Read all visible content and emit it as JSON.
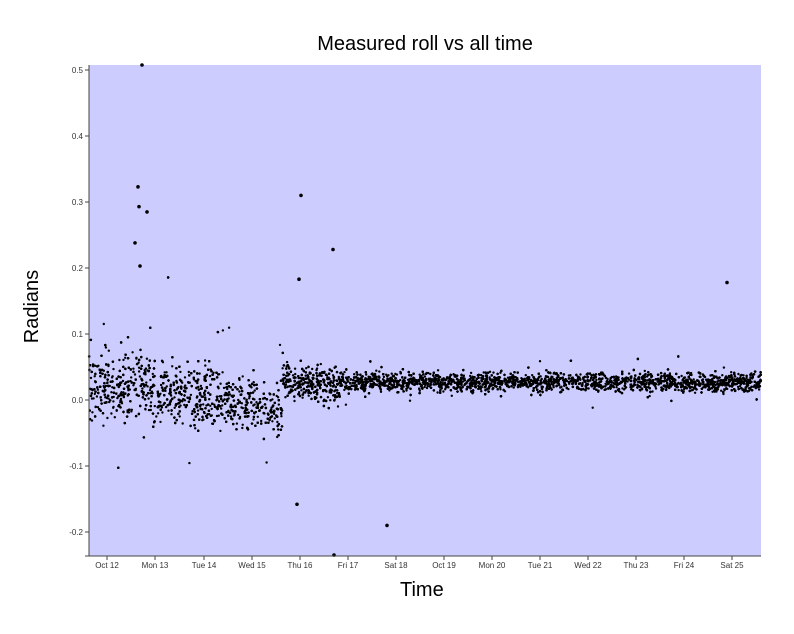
{
  "chart_data": {
    "type": "scatter",
    "title": "Measured roll vs all time",
    "xlabel": "Time",
    "ylabel": "Radians",
    "ylim": [
      -0.235,
      0.51
    ],
    "yticks": [
      -0.2,
      -0.1,
      0.0,
      0.1,
      0.2,
      0.3,
      0.4,
      0.5
    ],
    "ytick_labels": [
      "-0.2",
      "-0.1",
      "0.0",
      "0.1",
      "0.2",
      "0.3",
      "0.4",
      "0.5"
    ],
    "xtick_labels": [
      "Oct 12",
      "Mon 13",
      "Tue 14",
      "Wed 15",
      "Thu 16",
      "Fri 17",
      "Sat 18",
      "Oct 19",
      "Mon 20",
      "Tue 21",
      "Wed 22",
      "Thu 23",
      "Fri 24",
      "Sat 25"
    ],
    "grid": false,
    "background": "#ccccff",
    "marker_color": "#000000",
    "series": [
      {
        "name": "roll",
        "summary": "Dense band of points around 0.02–0.03 rad across the full period; wider scatter (-0.09 to 0.1) Oct 12–Wed 15, dipping negative around Wed 15; tight band from Fri 17 onward.",
        "outliers": [
          {
            "x": "Oct 12 ~18:00",
            "y": 0.51
          },
          {
            "x": "Oct 12 ~17:00",
            "y": 0.323
          },
          {
            "x": "Oct 12 ~17:00",
            "y": 0.293
          },
          {
            "x": "Oct 12 ~19:00",
            "y": 0.285
          },
          {
            "x": "Oct 12 ~16:00",
            "y": 0.238
          },
          {
            "x": "Oct 12 ~17:00",
            "y": 0.203
          },
          {
            "x": "Thu 16 ~03:00",
            "y": 0.31
          },
          {
            "x": "Thu 16 ~03:00",
            "y": 0.183
          },
          {
            "x": "Thu 16 ~20:00",
            "y": 0.228
          },
          {
            "x": "Sat 25 ~00:00",
            "y": 0.178
          },
          {
            "x": "Thu 16 ~00:00",
            "y": -0.158
          },
          {
            "x": "Sat 18 ~00:00",
            "y": -0.19
          },
          {
            "x": "Thu 16 ~20:00",
            "y": -0.235
          }
        ]
      }
    ]
  }
}
